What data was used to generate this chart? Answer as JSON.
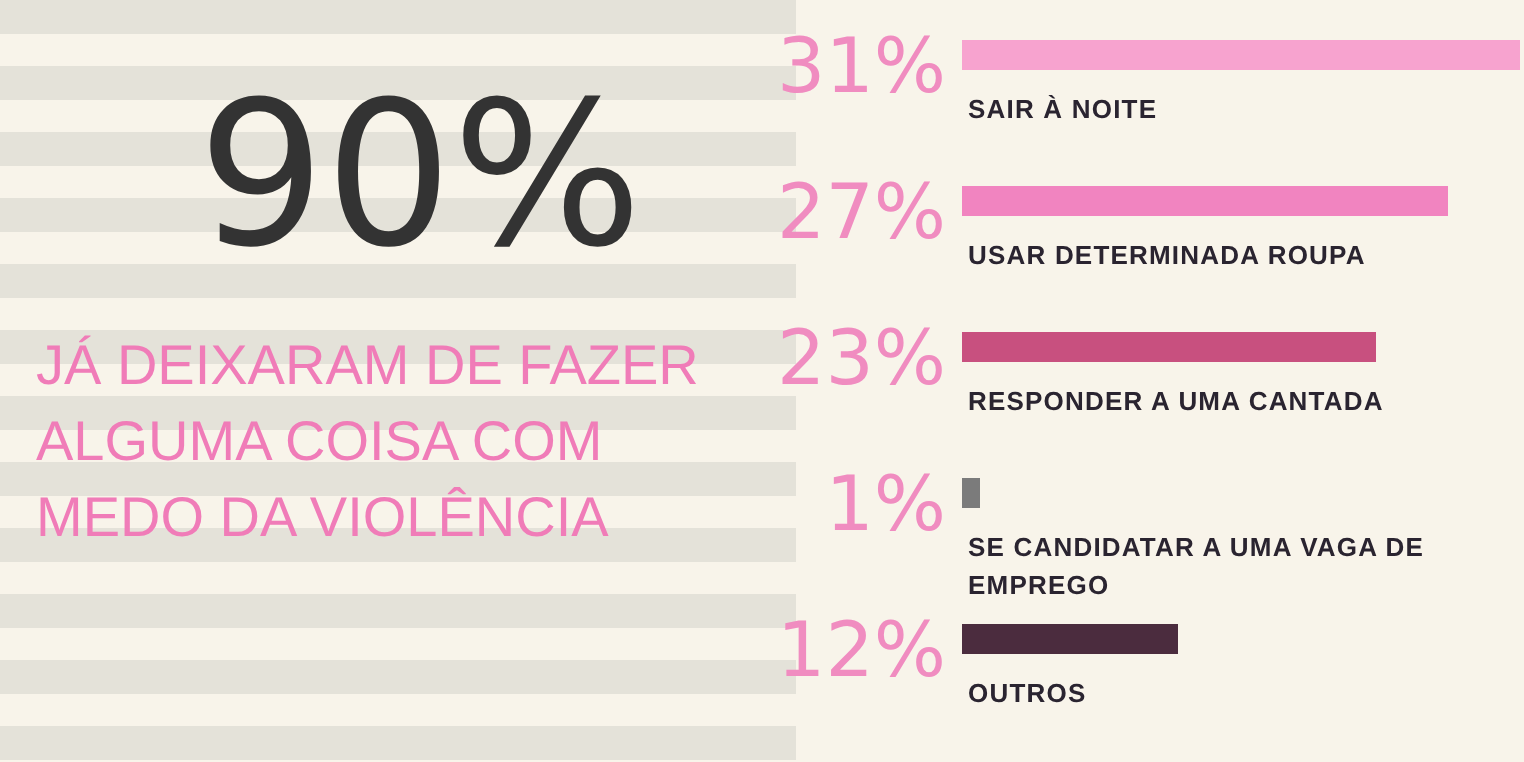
{
  "chart_data": {
    "type": "bar",
    "orientation": "horizontal",
    "title": "90%",
    "subtitle": "JÁ DEIXARAM DE FAZER ALGUMA COISA COM MEDO DA VIOLÊNCIA",
    "categories": [
      "SAIR À NOITE",
      "USAR DETERMINADA ROUPA",
      "RESPONDER A UMA CANTADA",
      "SE CANDIDATAR A UMA VAGA DE EMPREGO",
      "OUTROS"
    ],
    "values": [
      31,
      27,
      23,
      1,
      12
    ],
    "value_labels": [
      "31%",
      "27%",
      "23%",
      "1%",
      "12%"
    ],
    "colors": [
      "#f7a3cf",
      "#f184c0",
      "#c8507f",
      "#7b7b7b",
      "#4b2c3e"
    ]
  }
}
